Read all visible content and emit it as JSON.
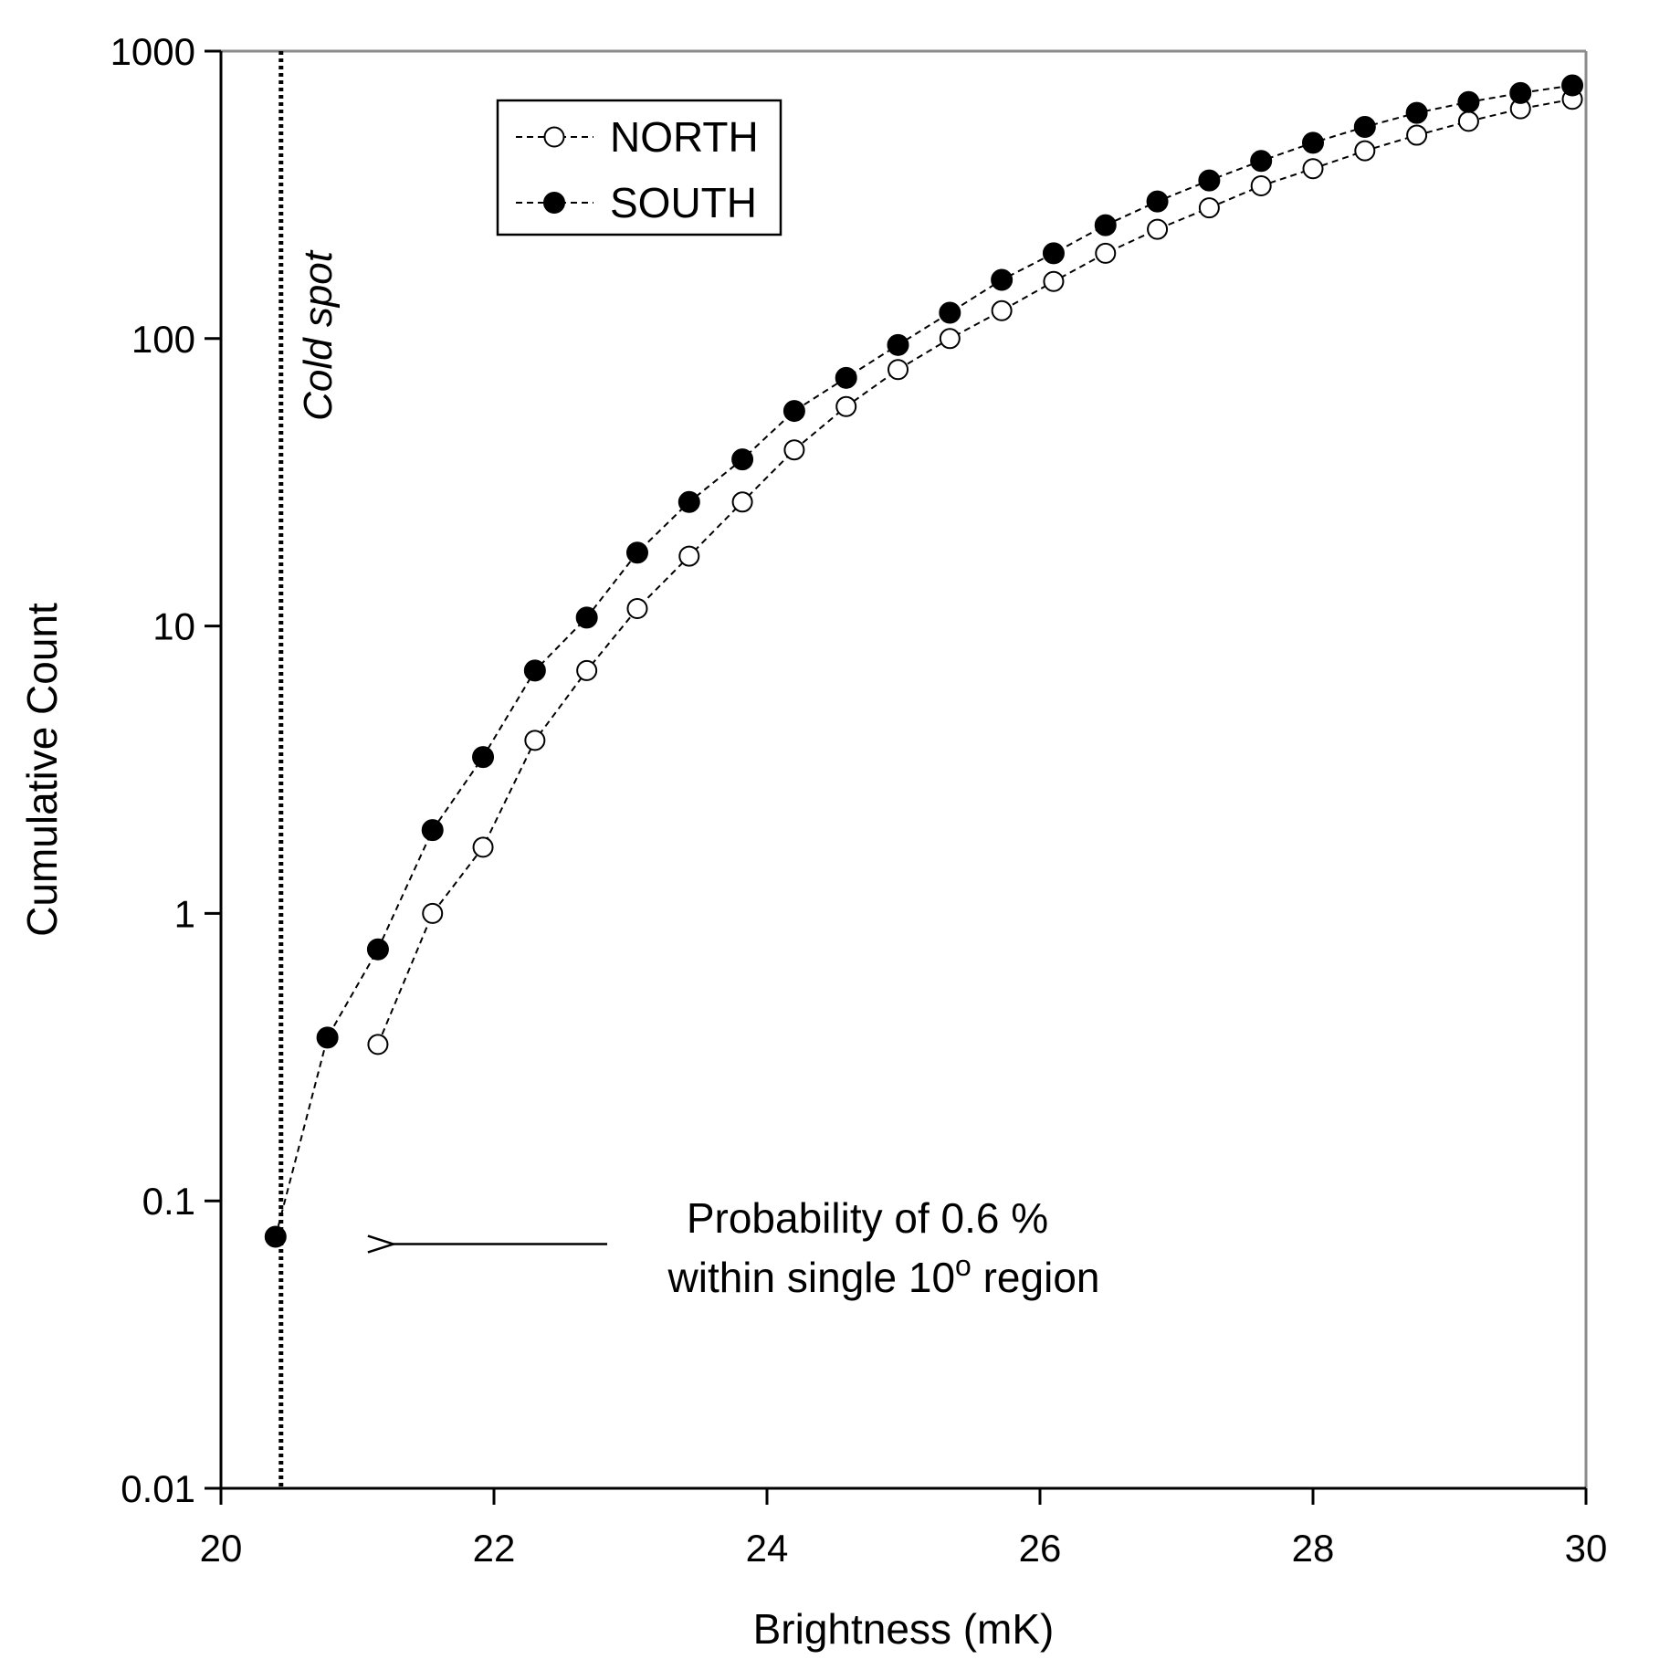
{
  "chart_data": {
    "type": "scatter",
    "xlabel": "Brightness (mK)",
    "ylabel": "Cumulative Count",
    "xlim": [
      20,
      30
    ],
    "ylim": [
      0.01,
      1000
    ],
    "yscale": "log",
    "x_ticks": [
      20,
      22,
      24,
      26,
      28,
      30
    ],
    "y_ticks": [
      0.01,
      0.1,
      1,
      10,
      100,
      1000
    ],
    "x_tick_labels": [
      "20",
      "22",
      "24",
      "26",
      "28",
      "30"
    ],
    "y_tick_labels": [
      "0.01",
      "0.1",
      "1",
      "10",
      "100",
      "1000"
    ],
    "grid": false,
    "legend_position": "top-left",
    "series": [
      {
        "name": "NORTH",
        "marker": "open-circle",
        "line": "dashed",
        "color": "#000000",
        "points": [
          [
            21.15,
            0.35
          ],
          [
            21.55,
            1.0
          ],
          [
            21.92,
            1.7
          ],
          [
            22.3,
            4.0
          ],
          [
            22.68,
            7.0
          ],
          [
            23.05,
            11.5
          ],
          [
            23.43,
            17.5
          ],
          [
            23.82,
            27
          ],
          [
            24.2,
            41
          ],
          [
            24.58,
            58
          ],
          [
            24.96,
            78
          ],
          [
            25.34,
            100
          ],
          [
            25.72,
            125
          ],
          [
            26.1,
            158
          ],
          [
            26.48,
            198
          ],
          [
            26.86,
            240
          ],
          [
            27.24,
            285
          ],
          [
            27.62,
            340
          ],
          [
            28.0,
            390
          ],
          [
            28.38,
            450
          ],
          [
            28.76,
            510
          ],
          [
            29.14,
            570
          ],
          [
            29.52,
            630
          ],
          [
            29.9,
            680
          ],
          [
            30.0,
            700
          ]
        ]
      },
      {
        "name": "SOUTH",
        "marker": "filled-circle",
        "line": "dashed",
        "color": "#000000",
        "points": [
          [
            20.4,
            0.075
          ],
          [
            20.78,
            0.37
          ],
          [
            21.15,
            0.75
          ],
          [
            21.55,
            1.95
          ],
          [
            21.92,
            3.5
          ],
          [
            22.3,
            7.0
          ],
          [
            22.68,
            10.7
          ],
          [
            23.05,
            18
          ],
          [
            23.43,
            27
          ],
          [
            23.82,
            38
          ],
          [
            24.2,
            56
          ],
          [
            24.58,
            73
          ],
          [
            24.96,
            95
          ],
          [
            25.34,
            123
          ],
          [
            25.72,
            160
          ],
          [
            26.1,
            198
          ],
          [
            26.48,
            248
          ],
          [
            26.86,
            300
          ],
          [
            27.24,
            355
          ],
          [
            27.62,
            415
          ],
          [
            28.0,
            480
          ],
          [
            28.38,
            545
          ],
          [
            28.76,
            610
          ],
          [
            29.14,
            665
          ],
          [
            29.52,
            715
          ],
          [
            29.9,
            760
          ],
          [
            30.0,
            775
          ]
        ]
      }
    ],
    "reference_line": {
      "x": 20.44,
      "label": "Cold spot"
    },
    "annotation": {
      "line1": "Probability of 0.6 %",
      "line2_prefix": "within single 10",
      "line2_degree": "o",
      "line2_suffix": " region",
      "points_to_x": 21.25,
      "points_to_y": 0.075
    }
  }
}
